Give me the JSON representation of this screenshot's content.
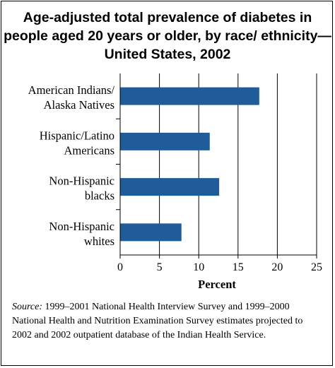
{
  "title": "Age-adjusted total prevalence of diabetes in people aged 20 years or older, by race/ ethnicity—United States, 2002",
  "source": {
    "label": "Source:",
    "text": "1999–2001 National Health Interview Survey and 1999–2000 National Health and Nutrition Examination Survey estimates projected to 2002 and 2002 outpatient database of the Indian Health Service."
  },
  "colors": {
    "bar": "#1f5c99",
    "axis": "#000000",
    "grid": "#000000"
  },
  "chart_data": {
    "type": "bar",
    "orientation": "horizontal",
    "categories": [
      [
        "American Indians/",
        "Alaska Natives"
      ],
      [
        "Hispanic/Latino",
        "Americans"
      ],
      [
        "Non-Hispanic",
        "blacks"
      ],
      [
        "Non-Hispanic",
        "whites"
      ]
    ],
    "values": [
      17.7,
      11.4,
      12.6,
      7.8
    ],
    "xlabel": "Percent",
    "ylabel": "",
    "xlim": [
      0,
      25
    ],
    "xticks": [
      0,
      5,
      10,
      15,
      20,
      25
    ],
    "grid": "vertical"
  }
}
